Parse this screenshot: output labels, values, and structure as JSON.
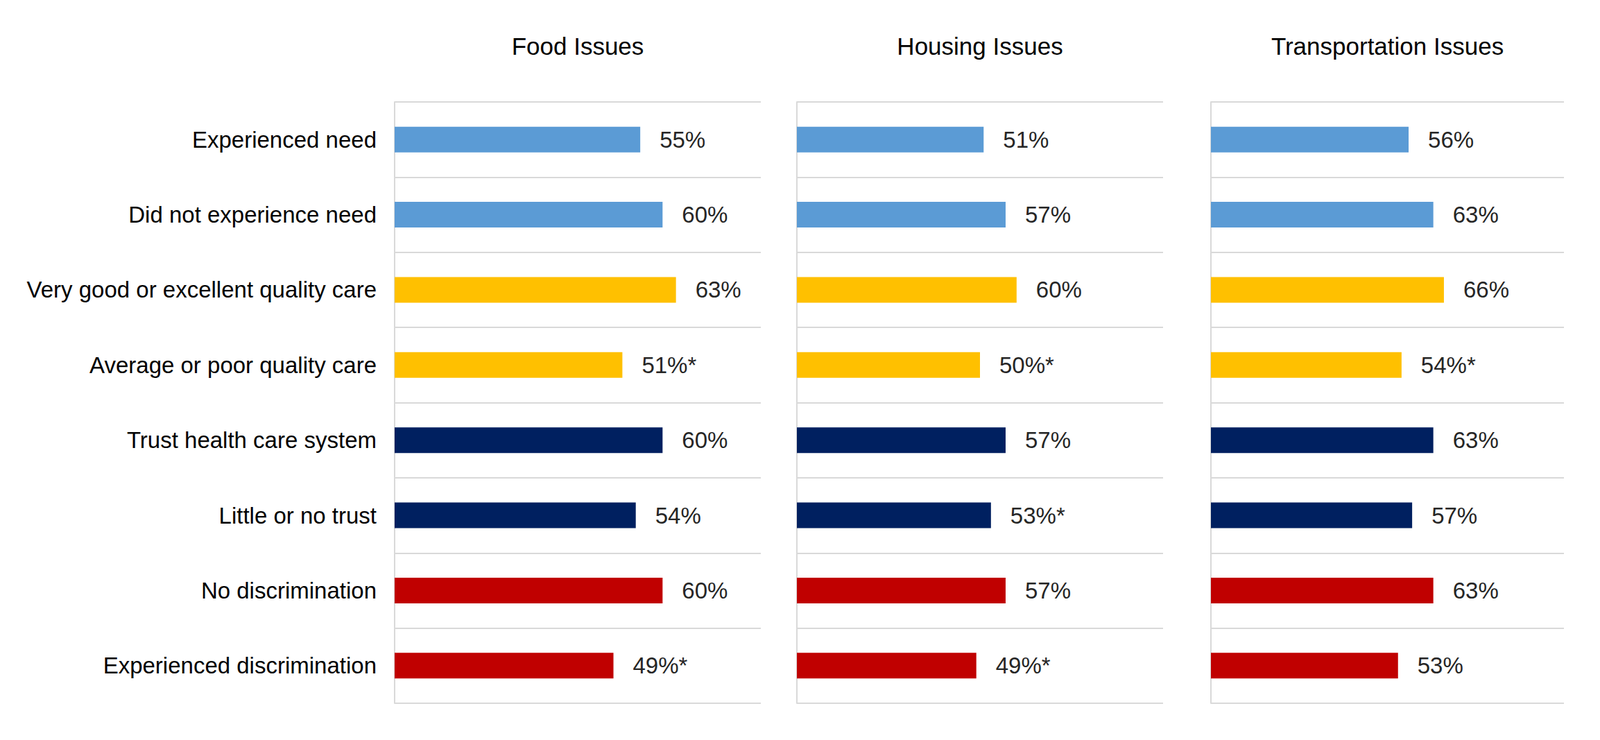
{
  "chart_data": [
    {
      "type": "bar",
      "title": "Food Issues",
      "orientation": "horizontal",
      "data_labels": true,
      "grid": true,
      "tick_labels": "y",
      "categories": [
        "Experienced need",
        "Did not experience need",
        "Very good or excellent quality care",
        "Average or poor quality care",
        "Trust health care system",
        "Little or no trust",
        "No discrimination",
        "Experienced discrimination"
      ],
      "values": [
        55,
        60,
        63,
        51,
        60,
        54,
        60,
        49
      ],
      "value_labels": [
        "55%",
        "60%",
        "63%",
        "51%*",
        "60%",
        "54%",
        "60%",
        "49%*"
      ],
      "colors": [
        "#5b9bd5",
        "#5b9bd5",
        "#ffc000",
        "#ffc000",
        "#002060",
        "#002060",
        "#c00000",
        "#c00000"
      ],
      "xlim": [
        0,
        82
      ]
    },
    {
      "type": "bar",
      "title": "Housing Issues",
      "orientation": "horizontal",
      "data_labels": true,
      "grid": true,
      "tick_labels": false,
      "categories": [
        "Experienced need",
        "Did not experience need",
        "Very good or excellent quality care",
        "Average or poor quality care",
        "Trust health care system",
        "Little or no trust",
        "No discrimination",
        "Experienced discrimination"
      ],
      "values": [
        51,
        57,
        60,
        50,
        57,
        53,
        57,
        49
      ],
      "value_labels": [
        "51%",
        "57%",
        "60%",
        "50%*",
        "57%",
        "53%*",
        "57%",
        "49%*"
      ],
      "colors": [
        "#5b9bd5",
        "#5b9bd5",
        "#ffc000",
        "#ffc000",
        "#002060",
        "#002060",
        "#c00000",
        "#c00000"
      ],
      "xlim": [
        0,
        100
      ]
    },
    {
      "type": "bar",
      "title": "Transportation Issues",
      "orientation": "horizontal",
      "data_labels": true,
      "grid": true,
      "tick_labels": false,
      "categories": [
        "Experienced need",
        "Did not experience need",
        "Very good or excellent quality care",
        "Average or poor quality care",
        "Trust health care system",
        "Little or no trust",
        "No discrimination",
        "Experienced discrimination"
      ],
      "values": [
        56,
        63,
        66,
        54,
        63,
        57,
        63,
        53
      ],
      "value_labels": [
        "56%",
        "63%",
        "66%",
        "54%*",
        "63%",
        "57%",
        "63%",
        "53%"
      ],
      "colors": [
        "#5b9bd5",
        "#5b9bd5",
        "#ffc000",
        "#ffc000",
        "#002060",
        "#002060",
        "#c00000",
        "#c00000"
      ],
      "xlim": [
        0,
        100
      ]
    }
  ]
}
